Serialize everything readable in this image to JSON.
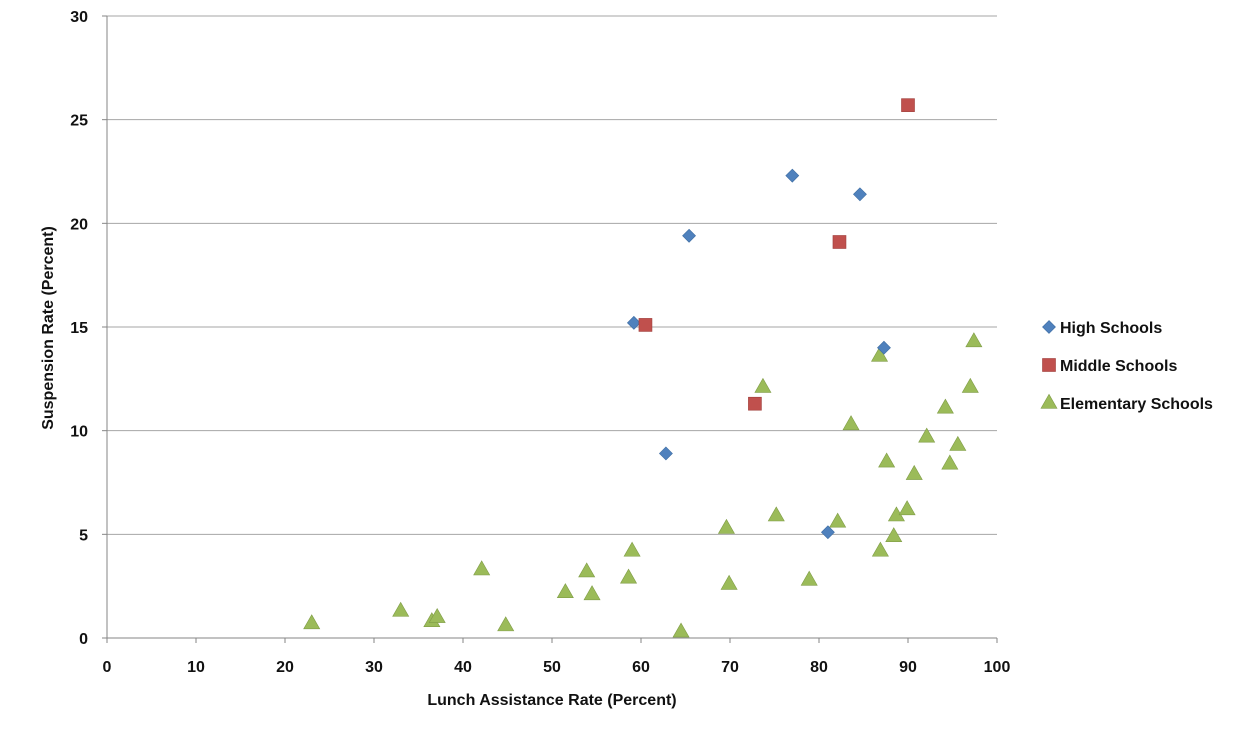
{
  "chart_data": {
    "type": "scatter",
    "title": "",
    "xlabel": "Lunch Assistance Rate (Percent)",
    "ylabel": "Suspension Rate (Percent)",
    "xlim": [
      0,
      100
    ],
    "ylim": [
      0,
      30
    ],
    "xticks": [
      0,
      10,
      20,
      30,
      40,
      50,
      60,
      70,
      80,
      90,
      100
    ],
    "yticks": [
      0,
      5,
      10,
      15,
      20,
      25,
      30
    ],
    "grid": "horizontal",
    "legend_position": "right",
    "series": [
      {
        "name": "High Schools",
        "marker": "diamond",
        "color": "#4F81BD",
        "points": [
          [
            59.2,
            15.2
          ],
          [
            62.8,
            8.9
          ],
          [
            65.4,
            19.4
          ],
          [
            77.0,
            22.3
          ],
          [
            84.6,
            21.4
          ],
          [
            87.3,
            14.0
          ],
          [
            81.0,
            5.1
          ]
        ]
      },
      {
        "name": "Middle Schools",
        "marker": "square",
        "color": "#C0504D",
        "points": [
          [
            60.5,
            15.1
          ],
          [
            72.8,
            11.3
          ],
          [
            82.3,
            19.1
          ],
          [
            90.0,
            25.7
          ]
        ]
      },
      {
        "name": "Elementary Schools",
        "marker": "triangle",
        "color": "#9BBB59",
        "points": [
          [
            23.0,
            0.7
          ],
          [
            33.0,
            1.3
          ],
          [
            36.5,
            0.8
          ],
          [
            37.1,
            1.0
          ],
          [
            42.1,
            3.3
          ],
          [
            44.8,
            0.6
          ],
          [
            51.5,
            2.2
          ],
          [
            53.9,
            3.2
          ],
          [
            54.5,
            2.1
          ],
          [
            58.6,
            2.9
          ],
          [
            59.0,
            4.2
          ],
          [
            64.5,
            0.3
          ],
          [
            69.6,
            5.3
          ],
          [
            69.9,
            2.6
          ],
          [
            73.7,
            12.1
          ],
          [
            75.2,
            5.9
          ],
          [
            78.9,
            2.8
          ],
          [
            82.1,
            5.6
          ],
          [
            83.6,
            10.3
          ],
          [
            86.8,
            13.6
          ],
          [
            86.9,
            4.2
          ],
          [
            87.6,
            8.5
          ],
          [
            88.4,
            4.9
          ],
          [
            88.7,
            5.9
          ],
          [
            89.9,
            6.2
          ],
          [
            90.7,
            7.9
          ],
          [
            92.1,
            9.7
          ],
          [
            94.2,
            11.1
          ],
          [
            94.7,
            8.4
          ],
          [
            95.6,
            9.3
          ],
          [
            97.0,
            12.1
          ],
          [
            97.4,
            14.3
          ]
        ]
      }
    ]
  }
}
